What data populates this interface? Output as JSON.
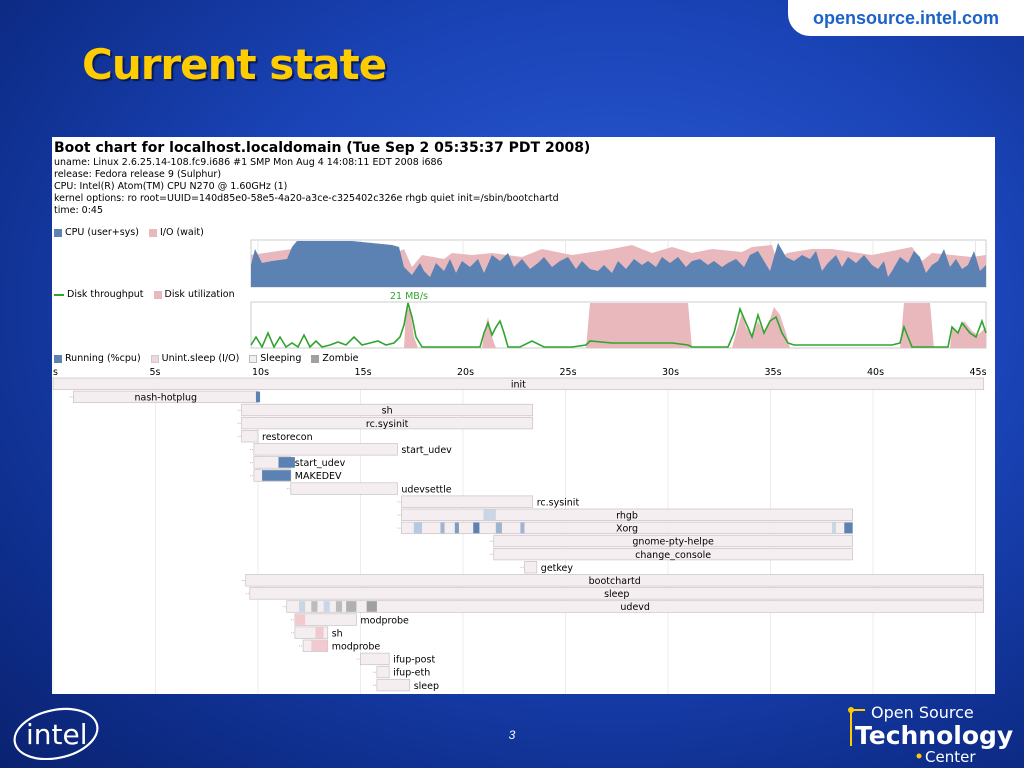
{
  "watermark": "opensource.intel.com",
  "slide_title": "Current state",
  "page_number": "3",
  "chart": {
    "heading": "Boot chart for localhost.localdomain (Tue Sep  2 05:35:37 PDT 2008)",
    "lines": [
      "uname: Linux 2.6.25.14-108.fc9.i686 #1 SMP Mon Aug 4 14:08:11 EDT 2008 i686",
      "release: Fedora release 9 (Sulphur)",
      "CPU: Intel(R) Atom(TM) CPU N270   @ 1.60GHz (1)",
      "kernel options: ro root=UUID=140d85e0-58e5-4a20-a3ce-c325402c326e rhgb quiet init=/sbin/bootchartd",
      "time: 0:45"
    ],
    "legend_cpu": [
      "CPU (user+sys)",
      "I/O (wait)"
    ],
    "legend_disk": [
      "Disk throughput",
      "Disk utilization"
    ],
    "disk_peak_label": "21 MB/s",
    "legend_proc": [
      "Running (%cpu)",
      "Unint.sleep (I/O)",
      "Sleeping",
      "Zombie"
    ],
    "colors": {
      "cpu": "#5b82b3",
      "io": "#e9b8bd",
      "throughput": "#2fa52f",
      "sleeping": "#f5eef1",
      "zombie": "#a0a0a0",
      "running": "#5b82b3"
    },
    "axis_ticks": [
      "s",
      "5s",
      "10s",
      "15s",
      "20s",
      "25s",
      "30s",
      "35s",
      "40s",
      "45s"
    ],
    "processes": [
      {
        "name": "init",
        "start": 0,
        "end": 45.4
      },
      {
        "name": "nash-hotplug",
        "start": 1,
        "end": 10
      },
      {
        "name": "sh",
        "start": 9.2,
        "end": 23.4
      },
      {
        "name": "rc.sysinit",
        "start": 9.2,
        "end": 23.4
      },
      {
        "name": "restorecon",
        "start": 9.2,
        "end": 10
      },
      {
        "name": "start_udev",
        "start": 9.8,
        "end": 16.8
      },
      {
        "name": "start_udev",
        "start": 9.8,
        "end": 11.6
      },
      {
        "name": "MAKEDEV",
        "start": 9.8,
        "end": 11.6
      },
      {
        "name": "udevsettle",
        "start": 11.6,
        "end": 16.8
      },
      {
        "name": "rc.sysinit",
        "start": 17.0,
        "end": 23.4
      },
      {
        "name": "rhgb",
        "start": 17.0,
        "end": 39.0
      },
      {
        "name": "Xorg",
        "start": 17.0,
        "end": 39.0
      },
      {
        "name": "gnome-pty-helpe",
        "start": 21.5,
        "end": 39.0
      },
      {
        "name": "change_console",
        "start": 21.5,
        "end": 39.0
      },
      {
        "name": "getkey",
        "start": 23.0,
        "end": 23.6
      },
      {
        "name": "bootchartd",
        "start": 9.4,
        "end": 45.4
      },
      {
        "name": "sleep",
        "start": 9.6,
        "end": 45.4
      },
      {
        "name": "udevd",
        "start": 11.4,
        "end": 45.4
      },
      {
        "name": "modprobe",
        "start": 11.8,
        "end": 14.8
      },
      {
        "name": "sh",
        "start": 11.8,
        "end": 13.4
      },
      {
        "name": "modprobe",
        "start": 12.2,
        "end": 13.4
      },
      {
        "name": "ifup-post",
        "start": 15.0,
        "end": 16.4
      },
      {
        "name": "ifup-eth",
        "start": 15.8,
        "end": 16.4
      },
      {
        "name": "sleep",
        "start": 15.8,
        "end": 17.4
      }
    ]
  },
  "logos": {
    "intel": "intel",
    "ostc_line1": "Open Source",
    "ostc_line2": "Technology",
    "ostc_line3": "Center"
  }
}
